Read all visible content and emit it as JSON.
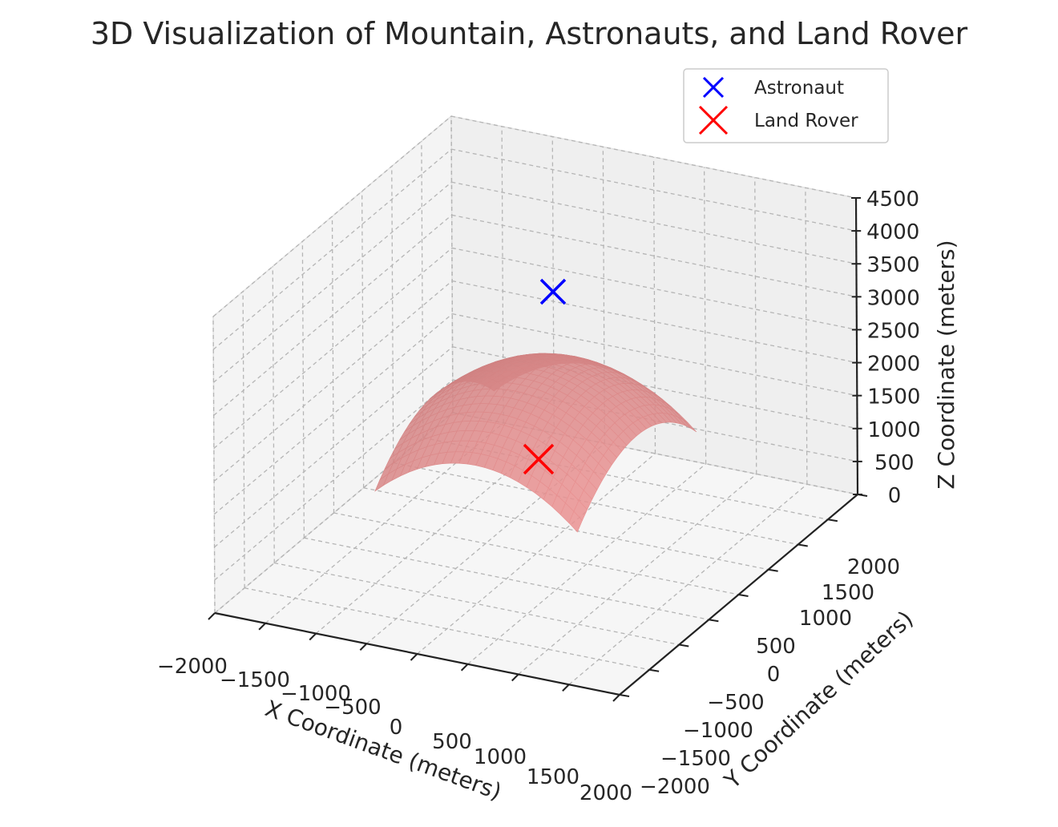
{
  "chart_data": {
    "type": "surface3d",
    "title": "3D Visualization of Mountain, Astronauts, and Land Rover",
    "xlabel": "X Coordinate (meters)",
    "ylabel": "Y Coordinate (meters)",
    "zlabel": "Z Coordinate (meters)",
    "xlim": [
      -2000,
      2000
    ],
    "ylim": [
      -2000,
      2000
    ],
    "zlim": [
      0,
      4500
    ],
    "xticks": [
      "−2000",
      "−1500",
      "−1000",
      "−500",
      "0",
      "500",
      "1000",
      "1500",
      "2000"
    ],
    "yticks": [
      "−2000",
      "−1500",
      "−1000",
      "−500",
      "0",
      "500",
      "1000",
      "1500",
      "2000"
    ],
    "zticks": [
      "0",
      "500",
      "1000",
      "1500",
      "2000",
      "2500",
      "3000",
      "3500",
      "4000",
      "4500"
    ],
    "grid": true,
    "surface": {
      "color": "#d98080",
      "x_range": [
        -1000,
        1000
      ],
      "y_range": [
        -1000,
        1000
      ],
      "peak_z": 2800,
      "corner_z": 1400
    },
    "series": [
      {
        "name": "Astronaut",
        "marker": "x",
        "color": "#0000ff",
        "x": 0,
        "y": 0,
        "z": 3600
      },
      {
        "name": "Land Rover",
        "marker": "x",
        "color": "#ff0000",
        "x": 0,
        "y": 0,
        "z": 1000
      }
    ],
    "legend_position": "top-right"
  }
}
